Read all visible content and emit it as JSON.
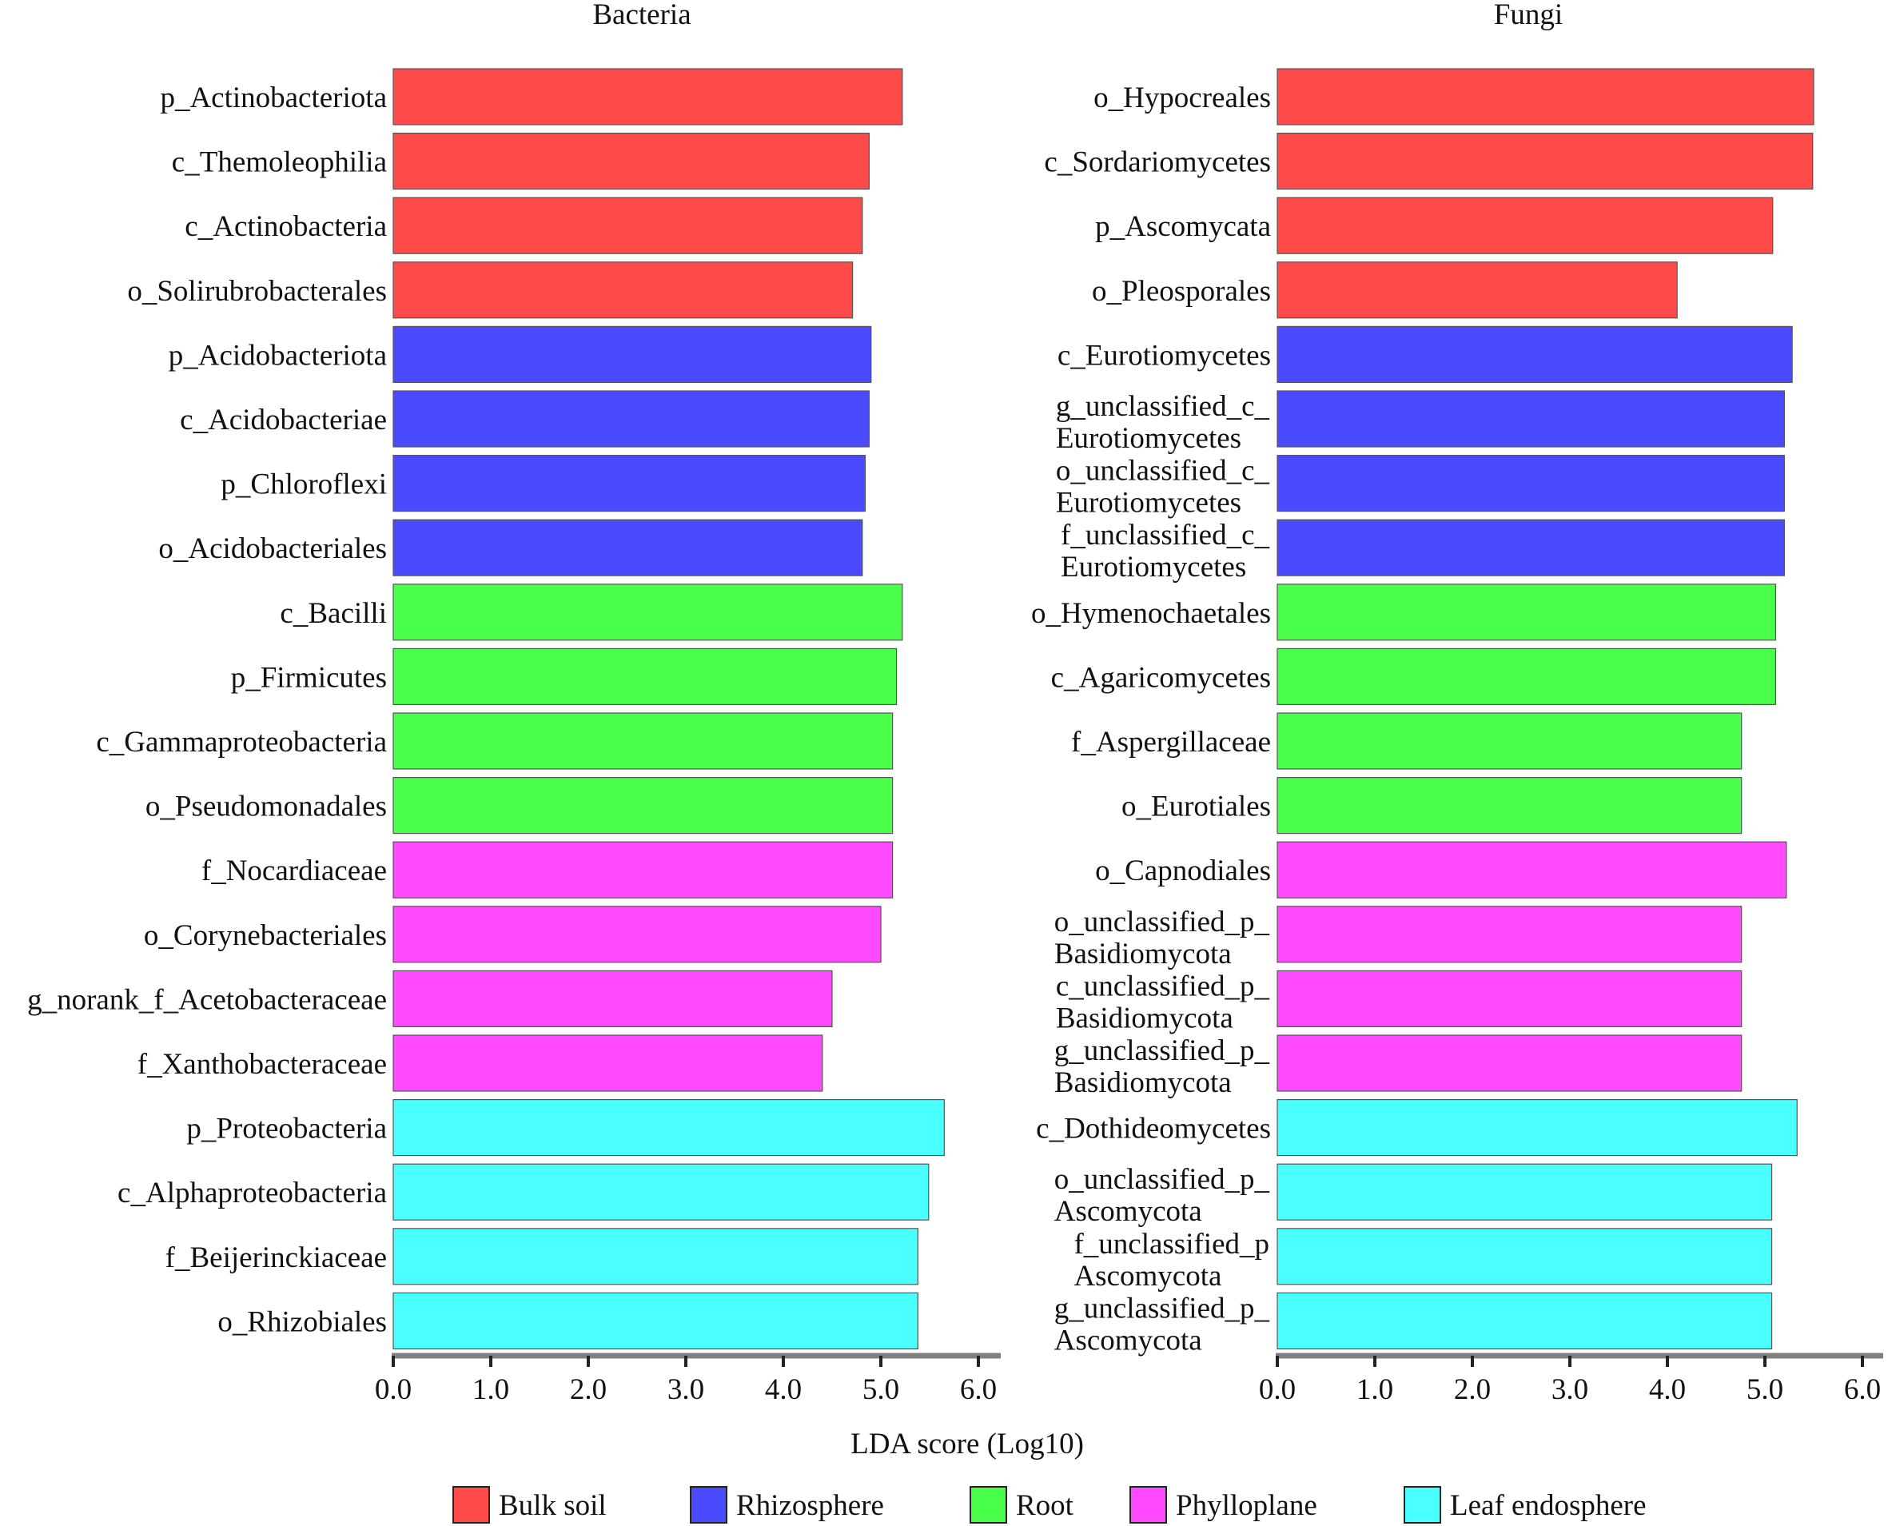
{
  "xlabel": "LDA score (Log10)",
  "legend": [
    {
      "key": "bulk",
      "label": "Bulk soil",
      "color": "#ff4a4a"
    },
    {
      "key": "rhizo",
      "label": "Rhizosphere",
      "color": "#4a4aff"
    },
    {
      "key": "root",
      "label": "Root",
      "color": "#4aff4a"
    },
    {
      "key": "phyllo",
      "label": "Phylloplane",
      "color": "#ff4aff"
    },
    {
      "key": "leaf",
      "label": "Leaf endosphere",
      "color": "#4affff"
    }
  ],
  "chart_data": [
    {
      "type": "bar",
      "orientation": "horizontal",
      "title": "Bacteria",
      "xlabel": "LDA score (Log10)",
      "xlim": [
        0,
        6.2
      ],
      "xticks": [
        "0.0",
        "1.0",
        "2.0",
        "3.0",
        "4.0",
        "5.0",
        "6.0"
      ],
      "categories": [
        {
          "label": [
            "p_Actinobacteriota"
          ],
          "value": 5.22,
          "group": "bulk"
        },
        {
          "label": [
            "c_Themoleophilia"
          ],
          "value": 4.88,
          "group": "bulk"
        },
        {
          "label": [
            "c_Actinobacteria"
          ],
          "value": 4.81,
          "group": "bulk"
        },
        {
          "label": [
            "o_Solirubrobacterales"
          ],
          "value": 4.71,
          "group": "bulk"
        },
        {
          "label": [
            "p_Acidobacteriota"
          ],
          "value": 4.9,
          "group": "rhizo"
        },
        {
          "label": [
            "c_Acidobacteriae"
          ],
          "value": 4.88,
          "group": "rhizo"
        },
        {
          "label": [
            "p_Chloroflexi"
          ],
          "value": 4.84,
          "group": "rhizo"
        },
        {
          "label": [
            "o_Acidobacteriales"
          ],
          "value": 4.81,
          "group": "rhizo"
        },
        {
          "label": [
            "c_Bacilli"
          ],
          "value": 5.22,
          "group": "root"
        },
        {
          "label": [
            "p_Firmicutes"
          ],
          "value": 5.16,
          "group": "root"
        },
        {
          "label": [
            "c_Gammaproteobacteria"
          ],
          "value": 5.12,
          "group": "root"
        },
        {
          "label": [
            "o_Pseudomonadales"
          ],
          "value": 5.12,
          "group": "root"
        },
        {
          "label": [
            "f_Nocardiaceae"
          ],
          "value": 5.12,
          "group": "phyllo"
        },
        {
          "label": [
            "o_Corynebacteriales"
          ],
          "value": 5.0,
          "group": "phyllo"
        },
        {
          "label": [
            "g_norank_f_Acetobacteraceae"
          ],
          "value": 4.5,
          "group": "phyllo"
        },
        {
          "label": [
            "f_Xanthobacteraceae"
          ],
          "value": 4.4,
          "group": "phyllo"
        },
        {
          "label": [
            "p_Proteobacteria"
          ],
          "value": 5.65,
          "group": "leaf"
        },
        {
          "label": [
            "c_Alphaproteobacteria"
          ],
          "value": 5.49,
          "group": "leaf"
        },
        {
          "label": [
            "f_Beijerinckiaceae"
          ],
          "value": 5.38,
          "group": "leaf"
        },
        {
          "label": [
            "o_Rhizobiales"
          ],
          "value": 5.38,
          "group": "leaf"
        }
      ]
    },
    {
      "type": "bar",
      "orientation": "horizontal",
      "title": "Fungi",
      "xlabel": "LDA score (Log10)",
      "xlim": [
        0,
        6.2
      ],
      "xticks": [
        "0.0",
        "1.0",
        "2.0",
        "3.0",
        "4.0",
        "5.0",
        "6.0"
      ],
      "categories": [
        {
          "label": [
            "o_Hypocreales"
          ],
          "value": 5.5,
          "group": "bulk"
        },
        {
          "label": [
            "c_Sordariomycetes"
          ],
          "value": 5.49,
          "group": "bulk"
        },
        {
          "label": [
            "p_Ascomycata"
          ],
          "value": 5.08,
          "group": "bulk"
        },
        {
          "label": [
            "o_Pleosporales"
          ],
          "value": 4.1,
          "group": "bulk"
        },
        {
          "label": [
            "c_Eurotiomycetes"
          ],
          "value": 5.28,
          "group": "rhizo"
        },
        {
          "label": [
            "g_unclassified_c_",
            "Eurotiomycetes"
          ],
          "value": 5.2,
          "group": "rhizo"
        },
        {
          "label": [
            "o_unclassified_c_",
            "Eurotiomycetes"
          ],
          "value": 5.2,
          "group": "rhizo"
        },
        {
          "label": [
            "f_unclassified_c_",
            "Eurotiomycetes"
          ],
          "value": 5.2,
          "group": "rhizo"
        },
        {
          "label": [
            "o_Hymenochaetales"
          ],
          "value": 5.11,
          "group": "root"
        },
        {
          "label": [
            "c_Agaricomycetes"
          ],
          "value": 5.11,
          "group": "root"
        },
        {
          "label": [
            "f_Aspergillaceae"
          ],
          "value": 4.76,
          "group": "root"
        },
        {
          "label": [
            "o_Eurotiales"
          ],
          "value": 4.76,
          "group": "root"
        },
        {
          "label": [
            "o_Capnodiales"
          ],
          "value": 5.22,
          "group": "phyllo"
        },
        {
          "label": [
            "o_unclassified_p_",
            "Basidiomycota"
          ],
          "value": 4.76,
          "group": "phyllo"
        },
        {
          "label": [
            "c_unclassified_p_",
            "Basidiomycota"
          ],
          "value": 4.76,
          "group": "phyllo"
        },
        {
          "label": [
            "g_unclassified_p_",
            "Basidiomycota"
          ],
          "value": 4.76,
          "group": "phyllo"
        },
        {
          "label": [
            "c_Dothideomycetes"
          ],
          "value": 5.33,
          "group": "leaf"
        },
        {
          "label": [
            "o_unclassified_p_",
            "Ascomycota"
          ],
          "value": 5.07,
          "group": "leaf"
        },
        {
          "label": [
            "f_unclassified_p",
            "Ascomycota"
          ],
          "value": 5.07,
          "group": "leaf"
        },
        {
          "label": [
            "g_unclassified_p_",
            "Ascomycota"
          ],
          "value": 5.07,
          "group": "leaf"
        }
      ]
    }
  ]
}
